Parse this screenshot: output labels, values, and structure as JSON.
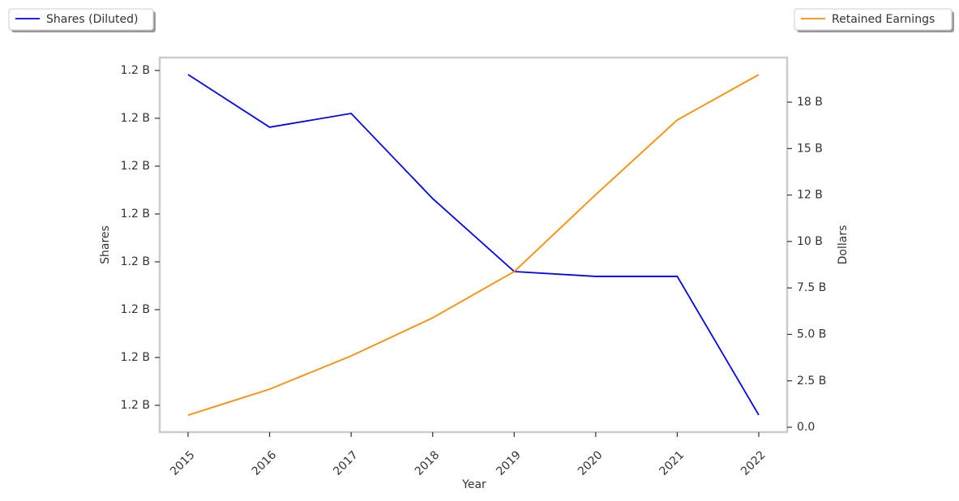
{
  "chart_data": {
    "type": "line",
    "x_label": "Year",
    "y_label": "Shares",
    "y2_label": "Dollars",
    "categories": [
      "2015",
      "2016",
      "2017",
      "2018",
      "2019",
      "2020",
      "2021",
      "2022"
    ],
    "series": [
      {
        "name": "Shares (Diluted)",
        "color": "#0000ff",
        "values": [
          1206915000,
          1205814000,
          1206102000,
          1204322000,
          1202797000,
          1202695000,
          1202695000,
          1199797000
        ]
      },
      {
        "name": "Retained Earnings",
        "color": "#ff8c00",
        "axis": "y2",
        "values": [
          650000000,
          2050000000,
          3840000000,
          5890000000,
          8380000000,
          12520000000,
          16540000000,
          18980000000
        ]
      }
    ],
    "ylim": [
      1199440000,
      1207270000
    ],
    "yticks": [
      {
        "value": 1200000000,
        "label": "1.2 B"
      },
      {
        "value": 1201000000,
        "label": "1.2 B"
      },
      {
        "value": 1202000000,
        "label": "1.2 B"
      },
      {
        "value": 1203000000,
        "label": "1.2 B"
      },
      {
        "value": 1204000000,
        "label": "1.2 B"
      },
      {
        "value": 1205000000,
        "label": "1.2 B"
      },
      {
        "value": 1206000000,
        "label": "1.2 B"
      },
      {
        "value": 1207000000,
        "label": "1.2 B"
      }
    ],
    "y2lim": [
      -260000000,
      19900000000
    ],
    "y2ticks": [
      {
        "value": 0,
        "label": "0.0"
      },
      {
        "value": 2500000000,
        "label": "2.5 B"
      },
      {
        "value": 5000000000,
        "label": "5.0 B"
      },
      {
        "value": 7500000000,
        "label": "7.5 B"
      },
      {
        "value": 10000000000,
        "label": "10 B"
      },
      {
        "value": 12500000000,
        "label": "12 B"
      },
      {
        "value": 15000000000,
        "label": "15 B"
      },
      {
        "value": 17500000000,
        "label": "18 B"
      }
    ],
    "grid": false
  }
}
